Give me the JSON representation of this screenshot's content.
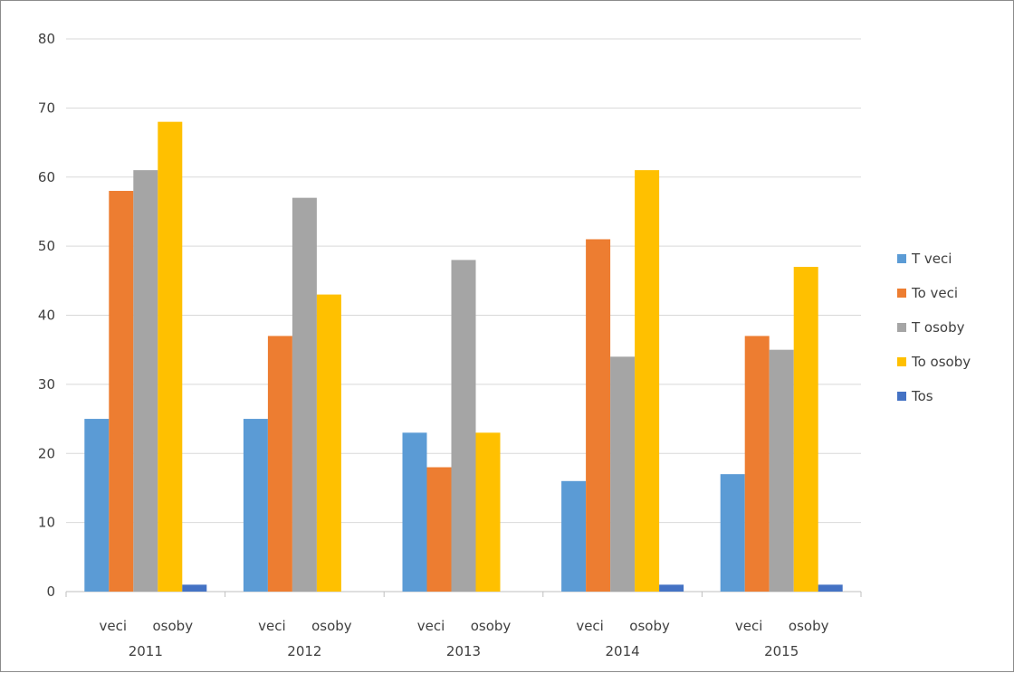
{
  "chart_data": {
    "type": "bar",
    "title": "",
    "xlabel": "",
    "ylabel": "",
    "ylim": [
      0,
      80
    ],
    "yticks": [
      0,
      10,
      20,
      30,
      40,
      50,
      60,
      70,
      80
    ],
    "grid": true,
    "legend_position": "right",
    "categories": [
      {
        "sublabels": [
          "veci",
          "osoby"
        ],
        "label": "2011"
      },
      {
        "sublabels": [
          "veci",
          "osoby"
        ],
        "label": "2012"
      },
      {
        "sublabels": [
          "veci",
          "osoby"
        ],
        "label": "2013"
      },
      {
        "sublabels": [
          "veci",
          "osoby"
        ],
        "label": "2014"
      },
      {
        "sublabels": [
          "veci",
          "osoby"
        ],
        "label": "2015"
      }
    ],
    "series": [
      {
        "name": "T veci",
        "color": "#5b9bd5",
        "values": [
          25,
          25,
          23,
          16,
          17
        ]
      },
      {
        "name": "To veci",
        "color": "#ed7d31",
        "values": [
          58,
          37,
          18,
          51,
          37
        ]
      },
      {
        "name": "T osoby",
        "color": "#a5a5a5",
        "values": [
          61,
          57,
          48,
          34,
          35
        ]
      },
      {
        "name": "To osoby",
        "color": "#ffc000",
        "values": [
          68,
          43,
          23,
          61,
          47
        ]
      },
      {
        "name": "Tos",
        "color": "#4472c4",
        "values": [
          1,
          0,
          0,
          1,
          1
        ]
      }
    ]
  }
}
